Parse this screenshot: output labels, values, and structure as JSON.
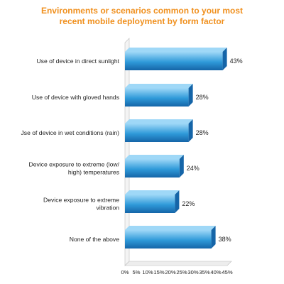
{
  "chart_data": {
    "type": "bar",
    "orientation": "horizontal",
    "title": "Environments or scenarios common to your most recent mobile deployment by form factor",
    "title_lines": [
      "Environments or scenarios common to your most",
      "recent mobile deployment by form factor"
    ],
    "categories": [
      [
        "Use of device in direct sunlight"
      ],
      [
        "Use of device with gloved hands"
      ],
      [
        "Jse of device in wet conditions (rain)"
      ],
      [
        "Device exposure to extreme (low/",
        "high) temperatures"
      ],
      [
        "Device exposure to extreme",
        "vibration"
      ],
      [
        "None of the above"
      ]
    ],
    "values": [
      43,
      28,
      28,
      24,
      22,
      38
    ],
    "value_labels": [
      "43%",
      "28%",
      "28%",
      "24%",
      "22%",
      "38%"
    ],
    "xlim": [
      0,
      45
    ],
    "x_ticks": [
      "0%",
      "5%",
      "10%",
      "15%",
      "20%",
      "25%",
      "30%",
      "35%",
      "40%",
      "45%"
    ],
    "x_tick_values": [
      0,
      5,
      10,
      15,
      20,
      25,
      30,
      35,
      40,
      45
    ],
    "xlabel": "",
    "ylabel": "",
    "grid": false,
    "legend": "none",
    "bar_color": "#2f9ad9",
    "bar_color_light": "#9fd8f7",
    "bar_color_dark": "#1565a8"
  }
}
